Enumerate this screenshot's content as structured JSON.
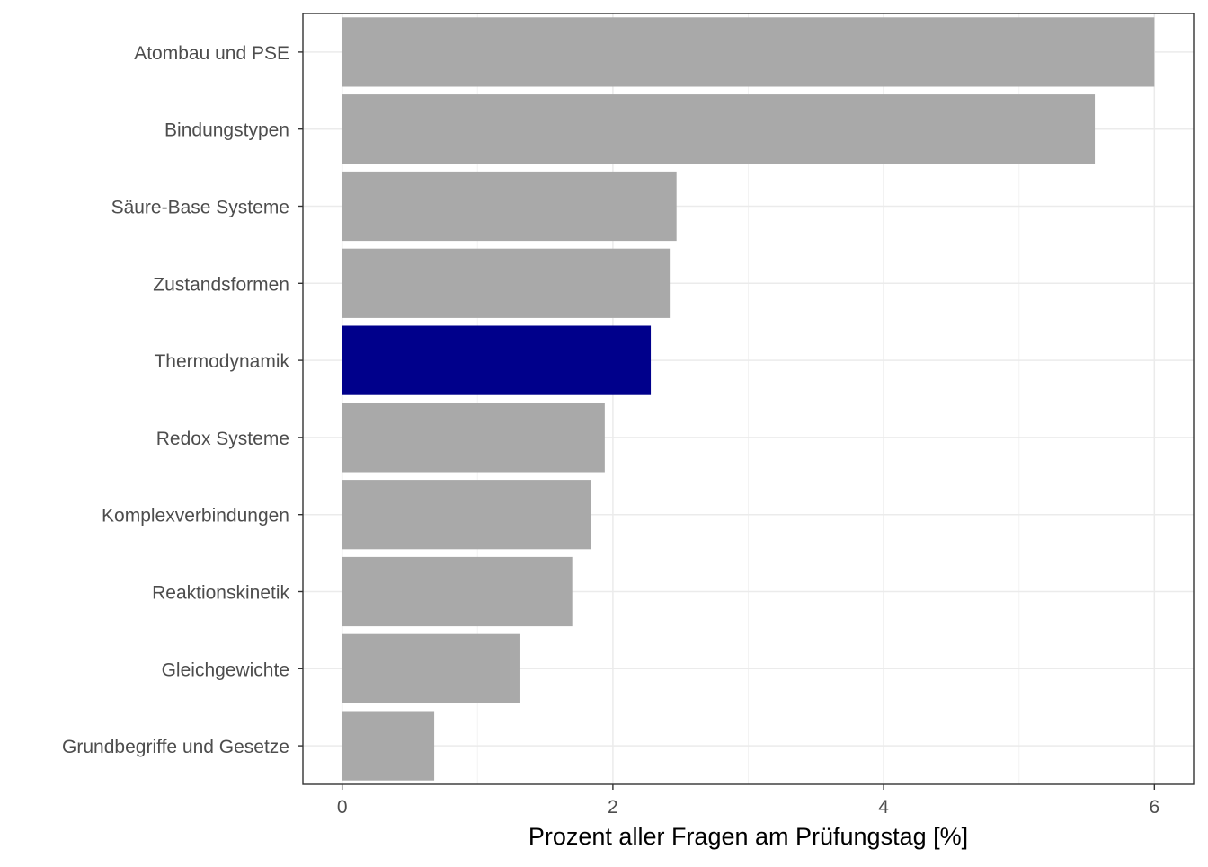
{
  "chart_data": {
    "type": "bar",
    "orientation": "horizontal",
    "title": "",
    "xlabel": "Prozent aller Fragen am Prüfungstag [%]",
    "ylabel": "",
    "xlim": [
      -0.29,
      6.29
    ],
    "x_ticks": [
      0,
      2,
      4,
      6
    ],
    "grid": true,
    "categories": [
      "Atombau und PSE",
      "Bindungstypen",
      "Säure-Base Systeme",
      "Zustandsformen",
      "Thermodynamik",
      "Redox Systeme",
      "Komplexverbindungen",
      "Reaktionskinetik",
      "Gleichgewichte",
      "Grundbegriffe und Gesetze"
    ],
    "values": [
      6.0,
      5.56,
      2.47,
      2.42,
      2.28,
      1.94,
      1.84,
      1.7,
      1.31,
      0.68
    ],
    "highlight": "Thermodynamik",
    "colors": {
      "bar": "#a9a9a9",
      "highlight": "#00008b",
      "grid_major": "#ebebeb",
      "grid_minor": "#f3f3f3",
      "panel_border": "#333333",
      "tick_label": "#4d4d4d",
      "axis_title": "#000000"
    }
  }
}
